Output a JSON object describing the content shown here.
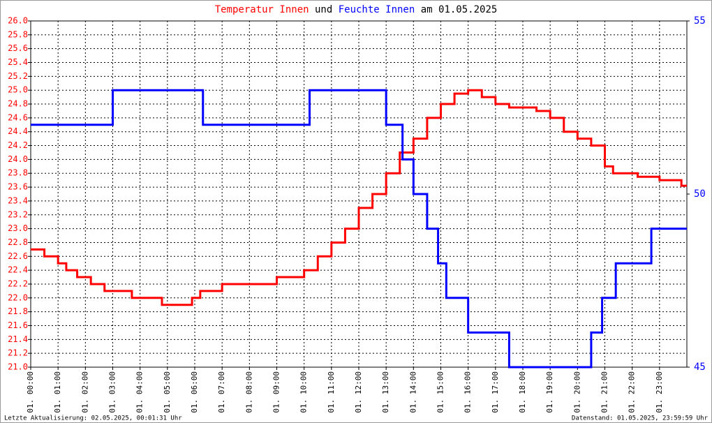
{
  "chart_data": {
    "type": "line",
    "title": [
      {
        "text": "Temperatur Innen",
        "color": "#ff0000"
      },
      {
        "text": "und",
        "color": "#000000"
      },
      {
        "text": "Feuchte Innen",
        "color": "#0000ff"
      },
      {
        "text": "am 01.05.2025",
        "color": "#000000"
      }
    ],
    "footer_left": "Letzte Aktualisierung: 02.05.2025, 00:01:31 Uhr",
    "footer_right": "Datenstand: 01.05.2025, 23:59:59 Uhr",
    "grid": true,
    "xlim": [
      0,
      24
    ],
    "xticks": [
      {
        "value": 0,
        "label": "01. 00:00"
      },
      {
        "value": 1,
        "label": "01. 01:00"
      },
      {
        "value": 2,
        "label": "01. 02:00"
      },
      {
        "value": 3,
        "label": "01. 03:00"
      },
      {
        "value": 4,
        "label": "01. 04:00"
      },
      {
        "value": 5,
        "label": "01. 05:00"
      },
      {
        "value": 6,
        "label": "01. 06:00"
      },
      {
        "value": 7,
        "label": "01. 07:00"
      },
      {
        "value": 8,
        "label": "01. 08:00"
      },
      {
        "value": 9,
        "label": "01. 09:00"
      },
      {
        "value": 10,
        "label": "01. 10:00"
      },
      {
        "value": 11,
        "label": "01. 11:00"
      },
      {
        "value": 12,
        "label": "01. 12:00"
      },
      {
        "value": 13,
        "label": "01. 13:00"
      },
      {
        "value": 14,
        "label": "01. 14:00"
      },
      {
        "value": 15,
        "label": "01. 15:00"
      },
      {
        "value": 16,
        "label": "01. 16:00"
      },
      {
        "value": 17,
        "label": "01. 17:00"
      },
      {
        "value": 18,
        "label": "01. 18:00"
      },
      {
        "value": 19,
        "label": "01. 19:00"
      },
      {
        "value": 20,
        "label": "01. 20:00"
      },
      {
        "value": 21,
        "label": "01. 21:00"
      },
      {
        "value": 22,
        "label": "01. 22:00"
      },
      {
        "value": 23,
        "label": "01. 23:00"
      }
    ],
    "ylim": [
      21,
      26
    ],
    "yticks": [
      {
        "value": 21,
        "label": "21.0"
      },
      21.2,
      21.4,
      21.6,
      21.8,
      {
        "value": 22,
        "label": "22.0"
      },
      22.2,
      22.4,
      22.6,
      22.8,
      {
        "value": 23,
        "label": "23.0"
      },
      23.2,
      23.4,
      23.6,
      23.8,
      {
        "value": 24,
        "label": "24.0"
      },
      24.2,
      24.4,
      24.6,
      24.8,
      {
        "value": 25,
        "label": "25.0"
      },
      25.2,
      25.4,
      25.6,
      25.8,
      {
        "value": 26,
        "label": "26.0"
      }
    ],
    "y2lim": [
      45,
      55
    ],
    "y2ticks": [
      45,
      50,
      55
    ],
    "series": [
      {
        "name": "Temperatur Innen",
        "color": "#ff0000",
        "axis": "y",
        "x": [
          0,
          0.5,
          1.0,
          1.3,
          1.7,
          2.2,
          2.7,
          3.7,
          4.8,
          5.9,
          6.2,
          7.0,
          9.0,
          10.0,
          10.5,
          11.0,
          11.5,
          12.0,
          12.5,
          13.0,
          13.5,
          14.0,
          14.5,
          15.0,
          15.5,
          16.0,
          16.5,
          17.0,
          17.5,
          18.5,
          19.0,
          19.5,
          20.0,
          20.5,
          21.0,
          21.3,
          22.2,
          23.0,
          23.8,
          24
        ],
        "values": [
          22.7,
          22.6,
          22.5,
          22.4,
          22.3,
          22.2,
          22.1,
          22.0,
          21.9,
          22.0,
          22.1,
          22.2,
          22.3,
          22.4,
          22.6,
          22.8,
          23.0,
          23.3,
          23.5,
          23.8,
          24.1,
          24.3,
          24.6,
          24.8,
          24.95,
          25.0,
          24.9,
          24.8,
          24.75,
          24.7,
          24.6,
          24.4,
          24.3,
          24.2,
          23.9,
          23.8,
          23.75,
          23.7,
          23.62,
          23.62
        ]
      },
      {
        "name": "Feuchte Innen",
        "color": "#0000ff",
        "axis": "y2",
        "x": [
          0,
          3.0,
          6.3,
          10.2,
          13.0,
          13.6,
          14.0,
          14.5,
          14.9,
          15.2,
          16.0,
          17.5,
          20.5,
          20.9,
          21.4,
          22.7,
          24
        ],
        "values": [
          52,
          53,
          52,
          53,
          52,
          51,
          50,
          49,
          48,
          47,
          46,
          45,
          46,
          47,
          48,
          49,
          49
        ]
      }
    ]
  }
}
